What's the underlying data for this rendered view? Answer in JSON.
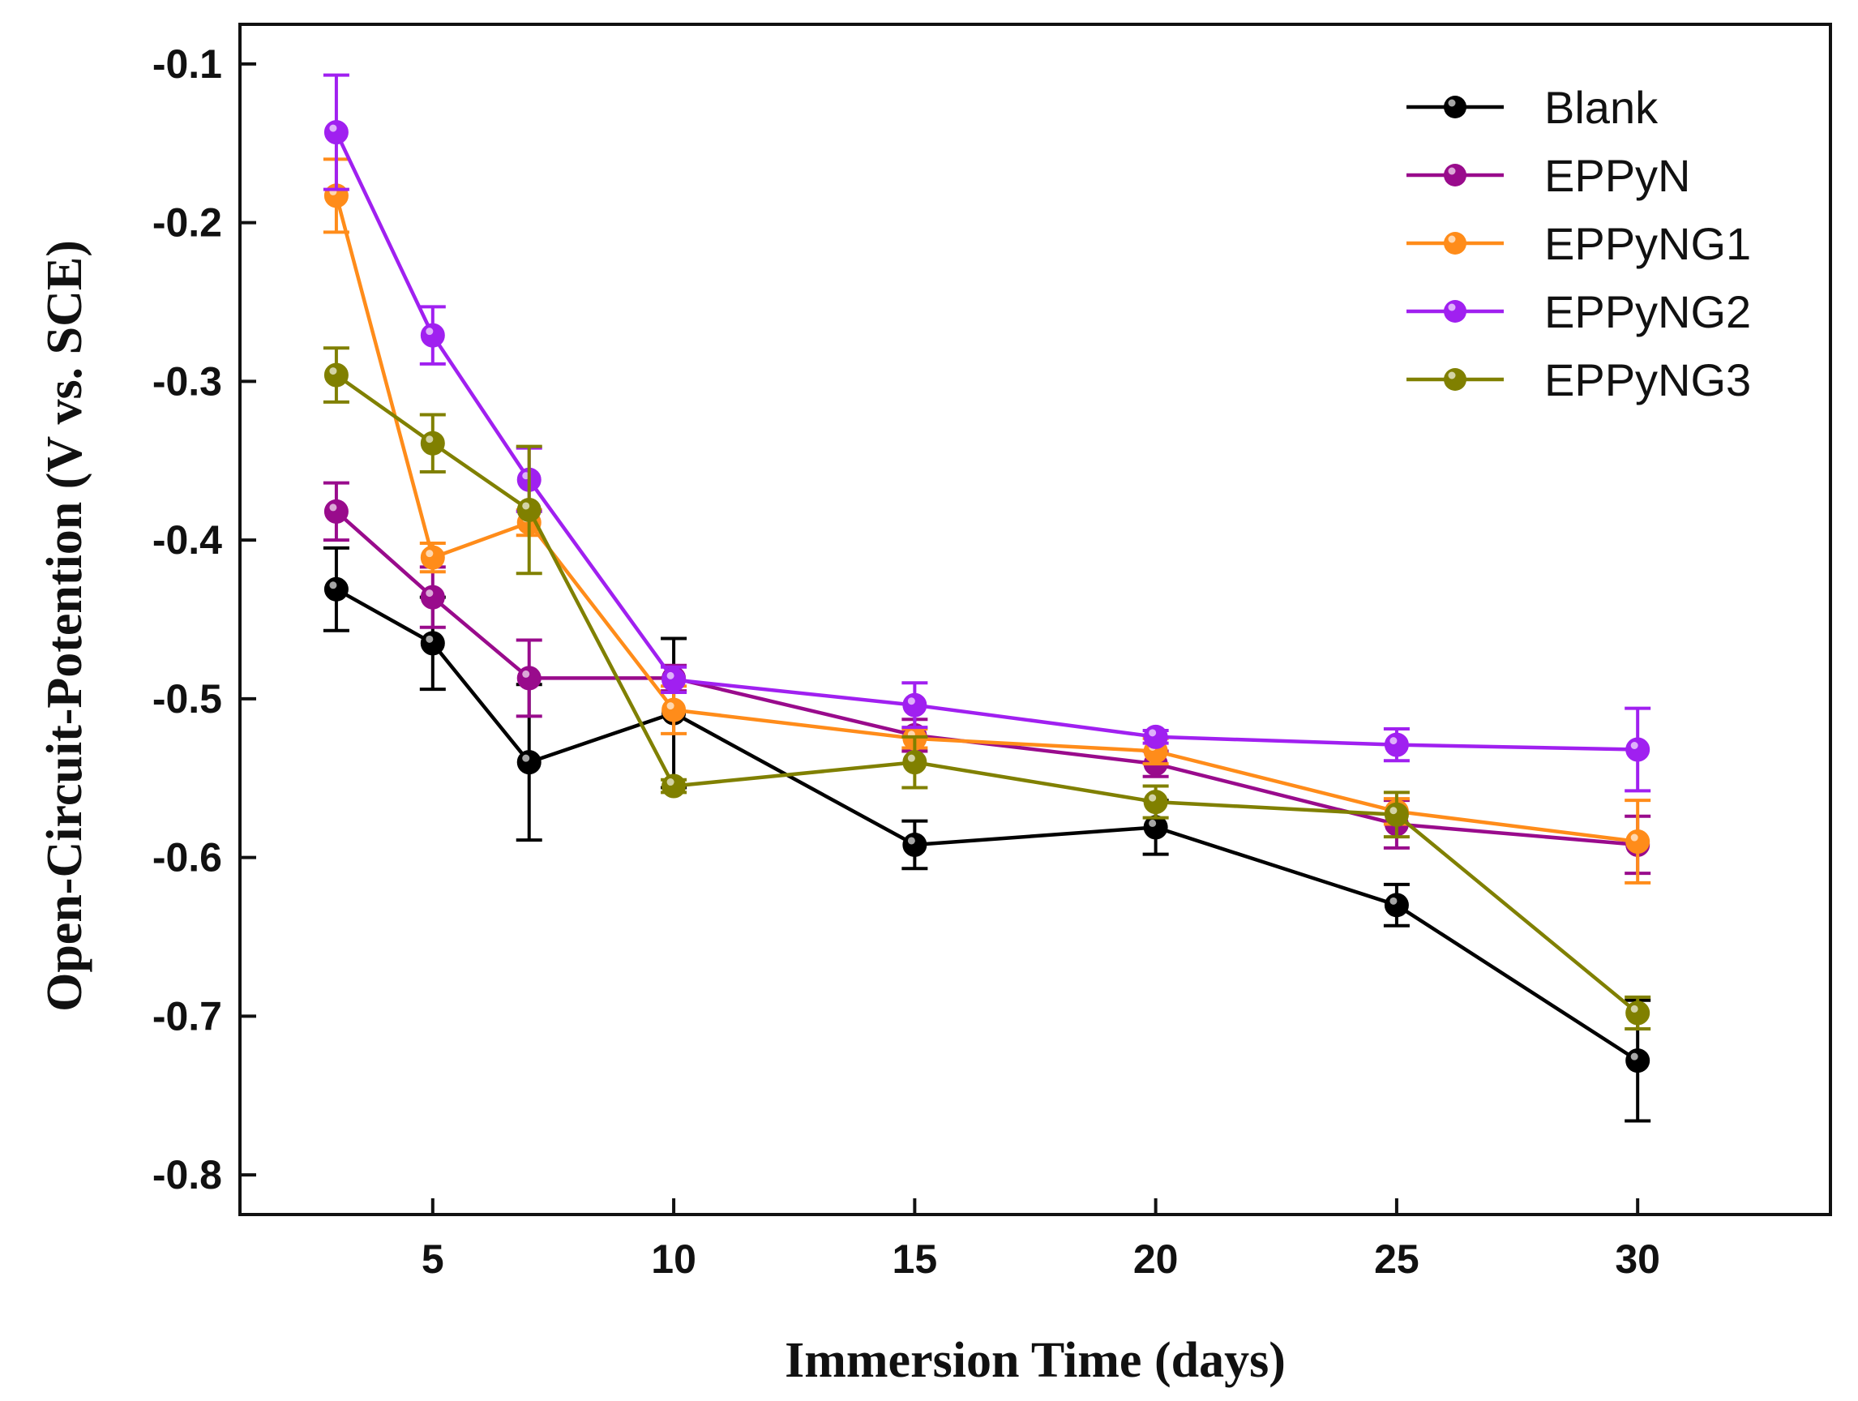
{
  "chart_data": {
    "type": "line",
    "title": "",
    "xlabel": "Immersion Time (days)",
    "ylabel": "Open-Circuit-Potention (V vs. SCE)",
    "xlim": [
      1,
      34
    ],
    "ylim": [
      -0.825,
      -0.075
    ],
    "xticks": [
      5,
      10,
      15,
      20,
      25,
      30
    ],
    "yticks": [
      -0.1,
      -0.2,
      -0.3,
      -0.4,
      -0.5,
      -0.6,
      -0.7,
      -0.8
    ],
    "xtick_labels": [
      "5",
      "10",
      "15",
      "20",
      "25",
      "30"
    ],
    "ytick_labels": [
      "-0.1",
      "-0.2",
      "-0.3",
      "-0.4",
      "-0.5",
      "-0.6",
      "-0.7",
      "-0.8"
    ],
    "grid": false,
    "legend_position": "top-right",
    "x": [
      3,
      5,
      7,
      10,
      15,
      20,
      25,
      30
    ],
    "series": [
      {
        "name": "Blank",
        "color": "#000000",
        "values": [
          -0.431,
          -0.465,
          -0.54,
          -0.509,
          -0.592,
          -0.581,
          -0.63,
          -0.728
        ],
        "errors": [
          0.026,
          0.029,
          0.049,
          0.047,
          0.015,
          0.017,
          0.013,
          0.038
        ]
      },
      {
        "name": "EPPyN",
        "color": "#990b8c",
        "values": [
          -0.382,
          -0.436,
          -0.487,
          -0.487,
          -0.523,
          -0.541,
          -0.579,
          -0.592
        ],
        "errors": [
          0.018,
          0.019,
          0.024,
          0.008,
          0.01,
          0.008,
          0.015,
          0.018
        ]
      },
      {
        "name": "EPPyNG1",
        "color": "#ff8c1a",
        "values": [
          -0.183,
          -0.411,
          -0.389,
          -0.507,
          -0.525,
          -0.533,
          -0.571,
          -0.59
        ],
        "errors": [
          0.023,
          0.009,
          0.008,
          0.015,
          0.006,
          0.008,
          0.008,
          0.026
        ]
      },
      {
        "name": "EPPyNG2",
        "color": "#a020f0",
        "values": [
          -0.143,
          -0.271,
          -0.362,
          -0.488,
          -0.504,
          -0.524,
          -0.529,
          -0.532
        ],
        "errors": [
          0.036,
          0.018,
          0.02,
          0.008,
          0.014,
          0.004,
          0.01,
          0.026
        ]
      },
      {
        "name": "EPPyNG3",
        "color": "#808000",
        "values": [
          -0.296,
          -0.339,
          -0.381,
          -0.555,
          -0.54,
          -0.565,
          -0.573,
          -0.698
        ],
        "errors": [
          0.017,
          0.018,
          0.04,
          0.004,
          0.016,
          0.01,
          0.014,
          0.01
        ]
      }
    ]
  }
}
